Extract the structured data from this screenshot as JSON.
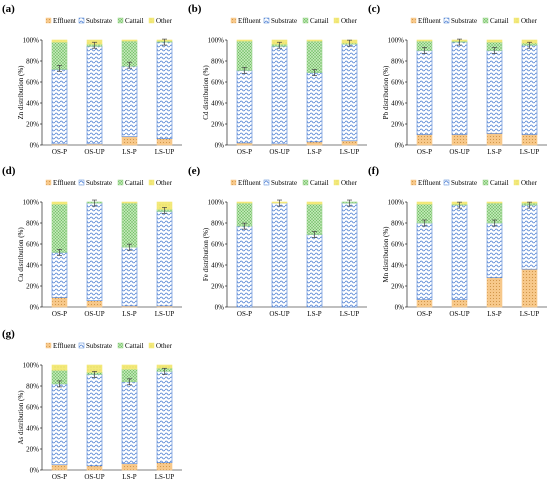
{
  "legend": [
    "Effluent",
    "Substrate",
    "Cattail",
    "Other"
  ],
  "colors": {
    "effluent": "#f7c88a",
    "substrate": "#4f81d4",
    "cattail": "#9ad48e",
    "other": "#f3e97a",
    "errorbar": "#444444"
  },
  "x_ticks": [
    "OS-P",
    "OS-UP",
    "LS-P",
    "LS-UP"
  ],
  "y_ticks": [
    "0%",
    "20%",
    "40%",
    "60%",
    "80%",
    "100%"
  ],
  "chart_data": [
    {
      "type": "bar",
      "panel": "(a)",
      "ylabel": "Zn distribution (%)",
      "categories": [
        "OS-P",
        "OS-UP",
        "LS-P",
        "LS-UP"
      ],
      "ylim": [
        0,
        100
      ],
      "series": [
        {
          "name": "Effluent",
          "values": [
            1,
            1,
            8,
            6
          ]
        },
        {
          "name": "Substrate",
          "values": [
            71,
            93,
            67,
            92
          ]
        },
        {
          "name": "Cattail",
          "values": [
            26,
            2,
            24,
            1
          ]
        },
        {
          "name": "Other",
          "values": [
            2,
            4,
            1,
            1
          ]
        }
      ],
      "error_top": [
        73,
        95,
        76,
        98
      ]
    },
    {
      "type": "bar",
      "panel": "(b)",
      "ylabel": "Cd distribution (%)",
      "categories": [
        "OS-P",
        "OS-UP",
        "LS-P",
        "LS-UP"
      ],
      "ylim": [
        0,
        100
      ],
      "series": [
        {
          "name": "Effluent",
          "values": [
            2,
            1,
            3,
            4
          ]
        },
        {
          "name": "Substrate",
          "values": [
            69,
            93,
            66,
            92
          ]
        },
        {
          "name": "Cattail",
          "values": [
            28,
            2,
            30,
            1
          ]
        },
        {
          "name": "Other",
          "values": [
            1,
            4,
            1,
            3
          ]
        }
      ],
      "error_top": [
        71,
        95,
        69,
        97
      ]
    },
    {
      "type": "bar",
      "panel": "(c)",
      "ylabel": "Pb distribution (%)",
      "categories": [
        "OS-P",
        "OS-UP",
        "LS-P",
        "LS-UP"
      ],
      "ylim": [
        0,
        100
      ],
      "series": [
        {
          "name": "Effluent",
          "values": [
            10,
            10,
            11,
            10
          ]
        },
        {
          "name": "Substrate",
          "values": [
            80,
            88,
            79,
            85
          ]
        },
        {
          "name": "Cattail",
          "values": [
            9,
            1,
            8,
            2
          ]
        },
        {
          "name": "Other",
          "values": [
            1,
            1,
            2,
            3
          ]
        }
      ],
      "error_top": [
        90,
        98,
        90,
        95
      ]
    },
    {
      "type": "bar",
      "panel": "(d)",
      "ylabel": "Cu distribution (%)",
      "categories": [
        "OS-P",
        "OS-UP",
        "LS-P",
        "LS-UP"
      ],
      "ylim": [
        0,
        100
      ],
      "series": [
        {
          "name": "Effluent",
          "values": [
            9,
            6,
            1,
            1
          ]
        },
        {
          "name": "Substrate",
          "values": [
            43,
            93,
            56,
            90
          ]
        },
        {
          "name": "Cattail",
          "values": [
            46,
            1,
            42,
            2
          ]
        },
        {
          "name": "Other",
          "values": [
            2,
            0,
            1,
            7
          ]
        }
      ],
      "error_top": [
        52,
        99,
        57,
        92
      ]
    },
    {
      "type": "bar",
      "panel": "(e)",
      "ylabel": "Fe distribution (%)",
      "categories": [
        "OS-P",
        "OS-UP",
        "LS-P",
        "LS-UP"
      ],
      "ylim": [
        0,
        100
      ],
      "series": [
        {
          "name": "Effluent",
          "values": [
            0,
            0,
            0,
            0
          ]
        },
        {
          "name": "Substrate",
          "values": [
            77,
            99,
            69,
            99
          ]
        },
        {
          "name": "Cattail",
          "values": [
            22,
            0,
            29,
            1
          ]
        },
        {
          "name": "Other",
          "values": [
            1,
            1,
            2,
            0
          ]
        }
      ],
      "error_top": [
        77,
        99,
        69,
        99
      ]
    },
    {
      "type": "bar",
      "panel": "(f)",
      "ylabel": "Mn distribution (%)",
      "categories": [
        "OS-P",
        "OS-UP",
        "LS-P",
        "LS-UP"
      ],
      "ylim": [
        0,
        100
      ],
      "series": [
        {
          "name": "Effluent",
          "values": [
            7,
            7,
            28,
            36
          ]
        },
        {
          "name": "Substrate",
          "values": [
            73,
            90,
            52,
            61
          ]
        },
        {
          "name": "Cattail",
          "values": [
            18,
            1,
            19,
            2
          ]
        },
        {
          "name": "Other",
          "values": [
            2,
            2,
            1,
            1
          ]
        }
      ],
      "error_top": [
        80,
        97,
        80,
        97
      ]
    },
    {
      "type": "bar",
      "panel": "(g)",
      "ylabel": "As distribution (%)",
      "categories": [
        "OS-P",
        "OS-UP",
        "LS-P",
        "LS-UP"
      ],
      "ylim": [
        0,
        100
      ],
      "series": [
        {
          "name": "Effluent",
          "values": [
            5,
            4,
            6,
            7
          ]
        },
        {
          "name": "Substrate",
          "values": [
            77,
            87,
            78,
            87
          ]
        },
        {
          "name": "Cattail",
          "values": [
            13,
            2,
            12,
            3
          ]
        },
        {
          "name": "Other",
          "values": [
            5,
            7,
            4,
            3
          ]
        }
      ],
      "error_top": [
        82,
        91,
        84,
        94
      ]
    }
  ]
}
